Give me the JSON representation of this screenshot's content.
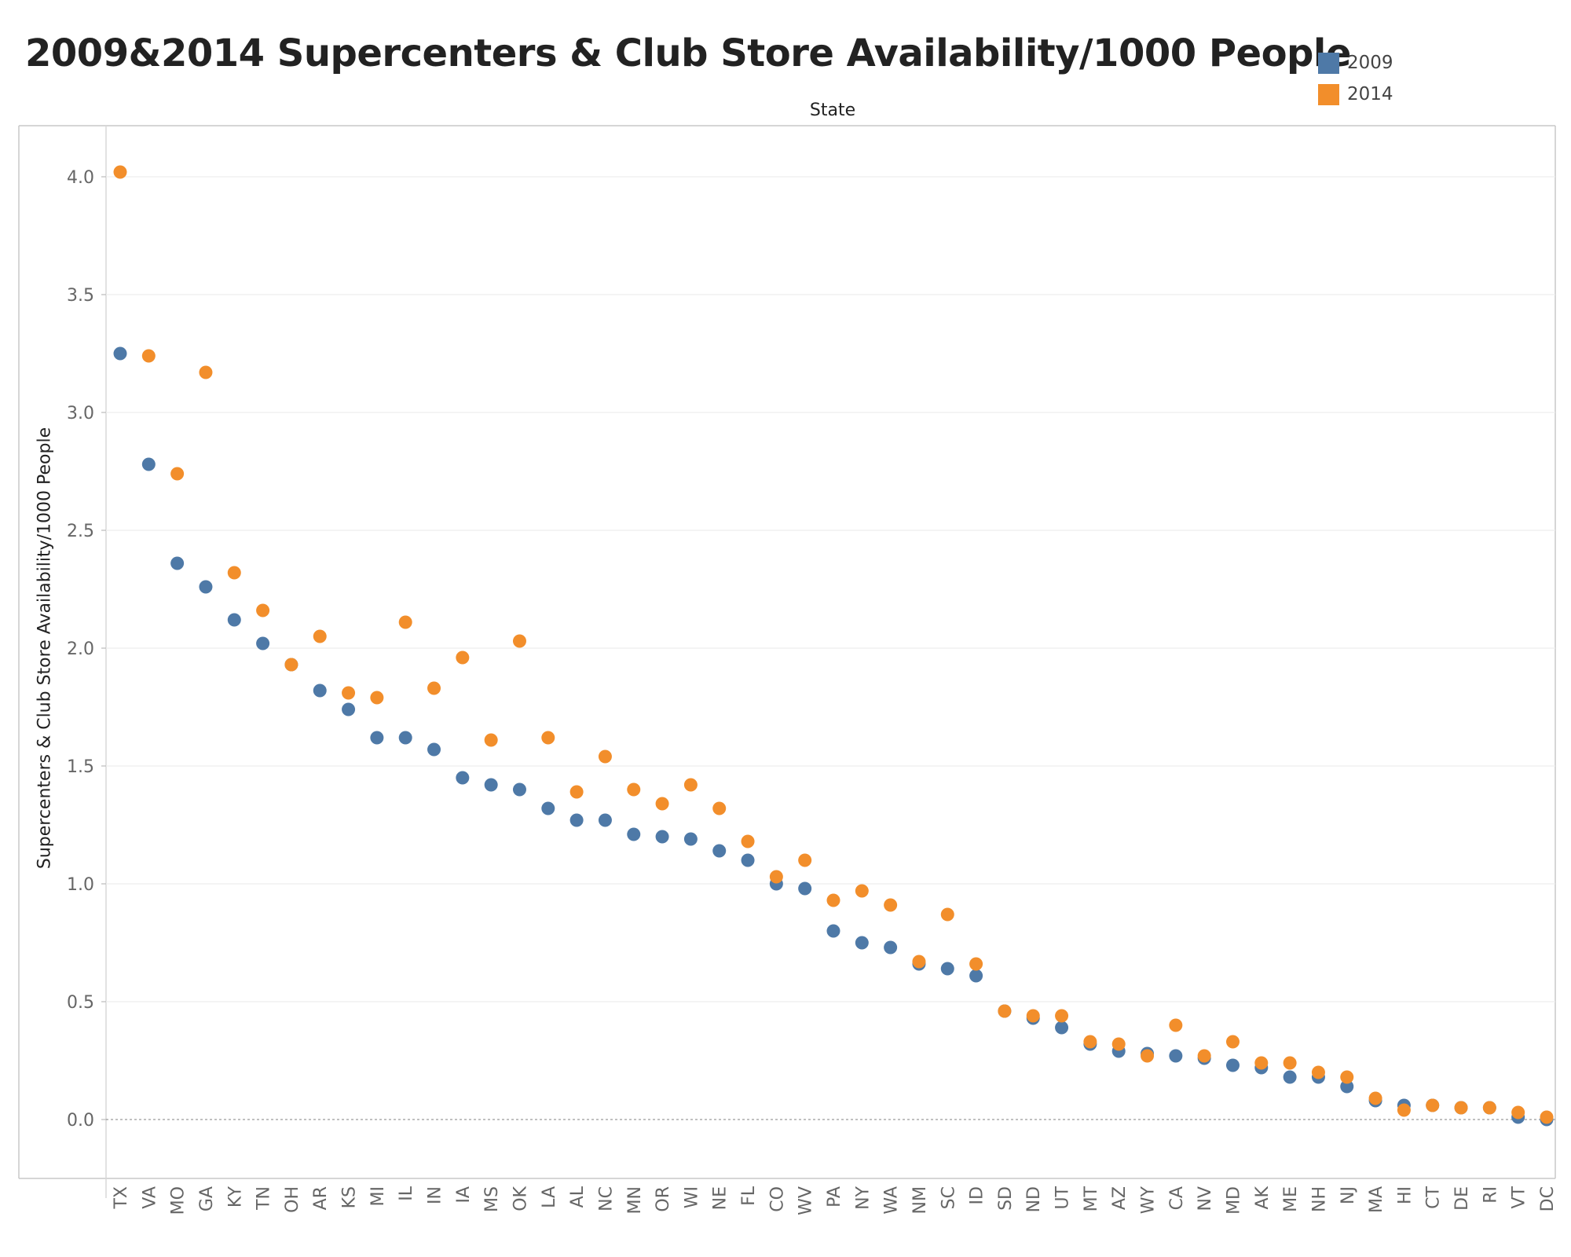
{
  "title": "2009&2014 Supercenters & Club Store Availability/1000 People",
  "legend": [
    {
      "label": "2009",
      "color": "#4e79a7"
    },
    {
      "label": "2014",
      "color": "#f28e2b"
    }
  ],
  "chart_data": {
    "type": "scatter",
    "title": "2009&2014 Supercenters & Club Store Availability/1000 People",
    "xlabel": "State",
    "ylabel": "Supercenters & Club Store Availability/1000 People",
    "ylim": [
      -0.2,
      4.2
    ],
    "yticks": [
      "0.0",
      "0.5",
      "1.0",
      "1.5",
      "2.0",
      "2.5",
      "3.0",
      "3.5",
      "4.0"
    ],
    "grid": "horizontal",
    "legend_position": "top-right",
    "categories": [
      "TX",
      "VA",
      "MO",
      "GA",
      "KY",
      "TN",
      "OH",
      "AR",
      "KS",
      "MI",
      "IL",
      "IN",
      "IA",
      "MS",
      "OK",
      "LA",
      "AL",
      "NC",
      "MN",
      "OR",
      "WI",
      "NE",
      "FL",
      "CO",
      "WV",
      "PA",
      "NY",
      "WA",
      "NM",
      "SC",
      "ID",
      "SD",
      "ND",
      "UT",
      "MT",
      "AZ",
      "WY",
      "CA",
      "NV",
      "MD",
      "AK",
      "ME",
      "NH",
      "NJ",
      "MA",
      "HI",
      "CT",
      "DE",
      "RI",
      "VT",
      "DC"
    ],
    "series": [
      {
        "name": "2009",
        "color": "#4e79a7",
        "values": [
          3.25,
          2.78,
          2.36,
          2.26,
          2.12,
          2.02,
          1.93,
          1.82,
          1.74,
          1.62,
          1.62,
          1.57,
          1.45,
          1.42,
          1.4,
          1.32,
          1.27,
          1.27,
          1.21,
          1.2,
          1.19,
          1.14,
          1.1,
          1.0,
          0.98,
          0.8,
          0.75,
          0.73,
          0.66,
          0.64,
          0.61,
          0.46,
          0.43,
          0.39,
          0.32,
          0.29,
          0.28,
          0.27,
          0.26,
          0.23,
          0.22,
          0.18,
          0.18,
          0.14,
          0.08,
          0.06,
          0.06,
          0.05,
          0.05,
          0.01,
          0.0
        ]
      },
      {
        "name": "2014",
        "color": "#f28e2b",
        "values": [
          4.02,
          3.24,
          2.74,
          3.17,
          2.32,
          2.16,
          1.93,
          2.05,
          1.81,
          1.79,
          2.11,
          1.83,
          1.96,
          1.61,
          2.03,
          1.62,
          1.39,
          1.54,
          1.4,
          1.34,
          1.42,
          1.32,
          1.18,
          1.03,
          1.1,
          0.93,
          0.97,
          0.91,
          0.67,
          0.87,
          0.66,
          0.46,
          0.44,
          0.44,
          0.33,
          0.32,
          0.27,
          0.4,
          0.27,
          0.33,
          0.24,
          0.24,
          0.2,
          0.18,
          0.09,
          0.04,
          0.06,
          0.05,
          0.05,
          0.03,
          0.01
        ]
      }
    ]
  }
}
